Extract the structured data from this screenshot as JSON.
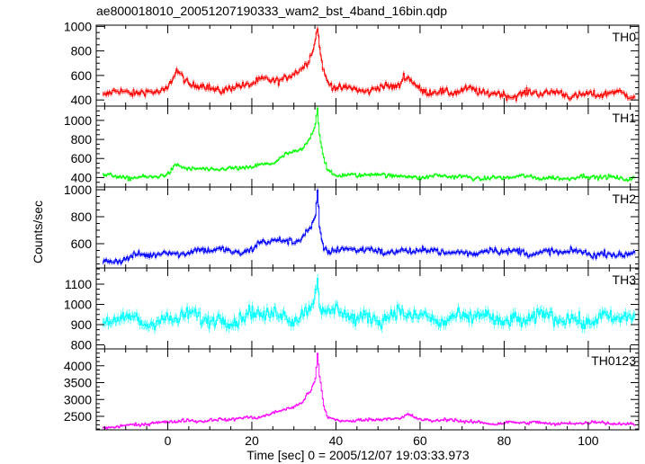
{
  "chart_data": {
    "type": "line",
    "title": "ae800018010_20051207190333_wam2_bst_4band_16bin.qdp",
    "xlabel": "Time [sec] 0 = 2005/12/07 19:03:33.973",
    "ylabel": "Counts/sec",
    "xlim": [
      -17,
      112
    ],
    "xticks": [
      0,
      20,
      40,
      60,
      80,
      100
    ],
    "grid": false,
    "panels": [
      {
        "name": "TH0",
        "color": "#ff0000",
        "ylim": [
          350,
          1010
        ],
        "yticks": [
          400,
          600,
          800,
          1000
        ],
        "profile": {
          "x": [
            -15,
            -10,
            -5,
            0,
            2,
            5,
            10,
            15,
            20,
            25,
            28,
            30,
            32,
            33,
            34,
            35,
            35.5,
            36,
            37,
            38,
            40,
            45,
            50,
            55,
            56,
            60,
            65,
            70,
            75,
            80,
            85,
            90,
            95,
            100,
            105,
            110
          ],
          "y": [
            440,
            460,
            470,
            500,
            620,
            520,
            500,
            500,
            530,
            560,
            590,
            620,
            680,
            720,
            780,
            880,
            990,
            800,
            600,
            520,
            500,
            490,
            500,
            510,
            580,
            490,
            470,
            470,
            460,
            450,
            450,
            450,
            450,
            450,
            445,
            440
          ]
        },
        "noise": 35
      },
      {
        "name": "TH1",
        "color": "#00ff00",
        "ylim": [
          300,
          1150
        ],
        "yticks": [
          400,
          600,
          800,
          1000
        ],
        "profile": {
          "x": [
            -15,
            -10,
            -5,
            0,
            2,
            5,
            10,
            15,
            20,
            25,
            28,
            30,
            32,
            33,
            34,
            35,
            35.5,
            36,
            37,
            38,
            40,
            45,
            50,
            55,
            60,
            65,
            70,
            75,
            80,
            85,
            90,
            95,
            100,
            105,
            110
          ],
          "y": [
            420,
            410,
            400,
            420,
            530,
            500,
            490,
            480,
            510,
            570,
            640,
            660,
            700,
            760,
            830,
            950,
            1120,
            830,
            600,
            480,
            430,
            430,
            420,
            420,
            410,
            410,
            400,
            400,
            400,
            400,
            400,
            400,
            400,
            400,
            400
          ]
        },
        "noise": 25
      },
      {
        "name": "TH2",
        "color": "#0000ff",
        "ylim": [
          420,
          1020
        ],
        "yticks": [
          600,
          800,
          1000
        ],
        "profile": {
          "x": [
            -15,
            -10,
            -5,
            0,
            5,
            10,
            15,
            20,
            22,
            25,
            28,
            30,
            32,
            33,
            34,
            35,
            35.5,
            36,
            37,
            38,
            40,
            45,
            50,
            55,
            60,
            65,
            70,
            75,
            80,
            85,
            90,
            95,
            100,
            105,
            110
          ],
          "y": [
            470,
            490,
            510,
            540,
            540,
            550,
            540,
            560,
            620,
            620,
            600,
            610,
            660,
            700,
            720,
            800,
            1000,
            720,
            580,
            560,
            550,
            550,
            550,
            550,
            540,
            540,
            540,
            540,
            540,
            540,
            540,
            530,
            530,
            530,
            520
          ]
        },
        "noise": 28
      },
      {
        "name": "TH3",
        "color": "#00ffff",
        "ylim": [
          780,
          1180
        ],
        "yticks": [
          800,
          900,
          1000,
          1100
        ],
        "profile": {
          "x": [
            -15,
            -10,
            0,
            10,
            20,
            30,
            34,
            35,
            35.5,
            36,
            37,
            40,
            50,
            60,
            70,
            80,
            90,
            100,
            110
          ],
          "y": [
            900,
            920,
            930,
            930,
            940,
            950,
            980,
            1050,
            1150,
            1000,
            950,
            950,
            940,
            940,
            930,
            930,
            930,
            930,
            920
          ]
        },
        "noise": 40
      },
      {
        "name": "TH0123",
        "color": "#ff00ff",
        "ylim": [
          2100,
          4500
        ],
        "yticks": [
          2500,
          3000,
          3500,
          4000
        ],
        "profile": {
          "x": [
            -15,
            -10,
            -5,
            0,
            5,
            10,
            15,
            20,
            25,
            28,
            30,
            32,
            33,
            34,
            35,
            35.5,
            36,
            37,
            38,
            40,
            45,
            50,
            55,
            57,
            60,
            65,
            70,
            75,
            80,
            85,
            90,
            95,
            100,
            105,
            110
          ],
          "y": [
            2150,
            2250,
            2280,
            2320,
            2380,
            2400,
            2400,
            2450,
            2600,
            2750,
            2780,
            2900,
            3100,
            3250,
            3600,
            4350,
            3700,
            2800,
            2450,
            2400,
            2380,
            2400,
            2420,
            2600,
            2400,
            2380,
            2350,
            2320,
            2300,
            2300,
            2300,
            2300,
            2300,
            2300,
            2280
          ]
        },
        "noise": 55
      }
    ]
  }
}
